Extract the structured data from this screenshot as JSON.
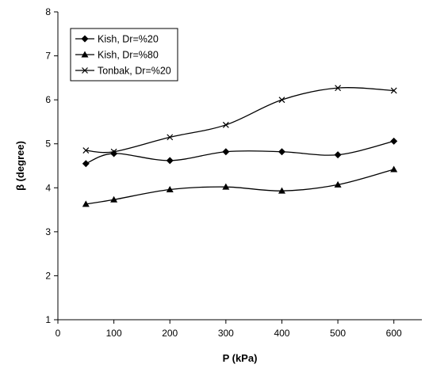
{
  "chart_data": {
    "type": "line",
    "title": "",
    "xlabel": "P (kPa)",
    "ylabel": "β (degree)",
    "xlim": [
      0,
      650
    ],
    "ylim": [
      1,
      8
    ],
    "xticks": [
      0,
      100,
      200,
      300,
      400,
      500,
      600
    ],
    "yticks": [
      1,
      2,
      3,
      4,
      5,
      6,
      7,
      8
    ],
    "grid": false,
    "smooth": true,
    "legend_position": "top-left",
    "series": [
      {
        "name": "Kish, Dr=%20",
        "marker": "diamond",
        "x": [
          50,
          100,
          200,
          300,
          400,
          500,
          600
        ],
        "y": [
          4.55,
          4.78,
          4.62,
          4.82,
          4.82,
          4.75,
          5.06
        ]
      },
      {
        "name": "Kish, Dr=%80",
        "marker": "triangle",
        "x": [
          50,
          100,
          200,
          300,
          400,
          500,
          600
        ],
        "y": [
          3.63,
          3.73,
          3.96,
          4.02,
          3.93,
          4.07,
          4.42
        ]
      },
      {
        "name": "Tonbak, Dr=%20",
        "marker": "x",
        "x": [
          50,
          100,
          200,
          300,
          400,
          500,
          600
        ],
        "y": [
          4.85,
          4.82,
          5.15,
          5.43,
          6.0,
          6.27,
          6.21
        ]
      }
    ]
  }
}
